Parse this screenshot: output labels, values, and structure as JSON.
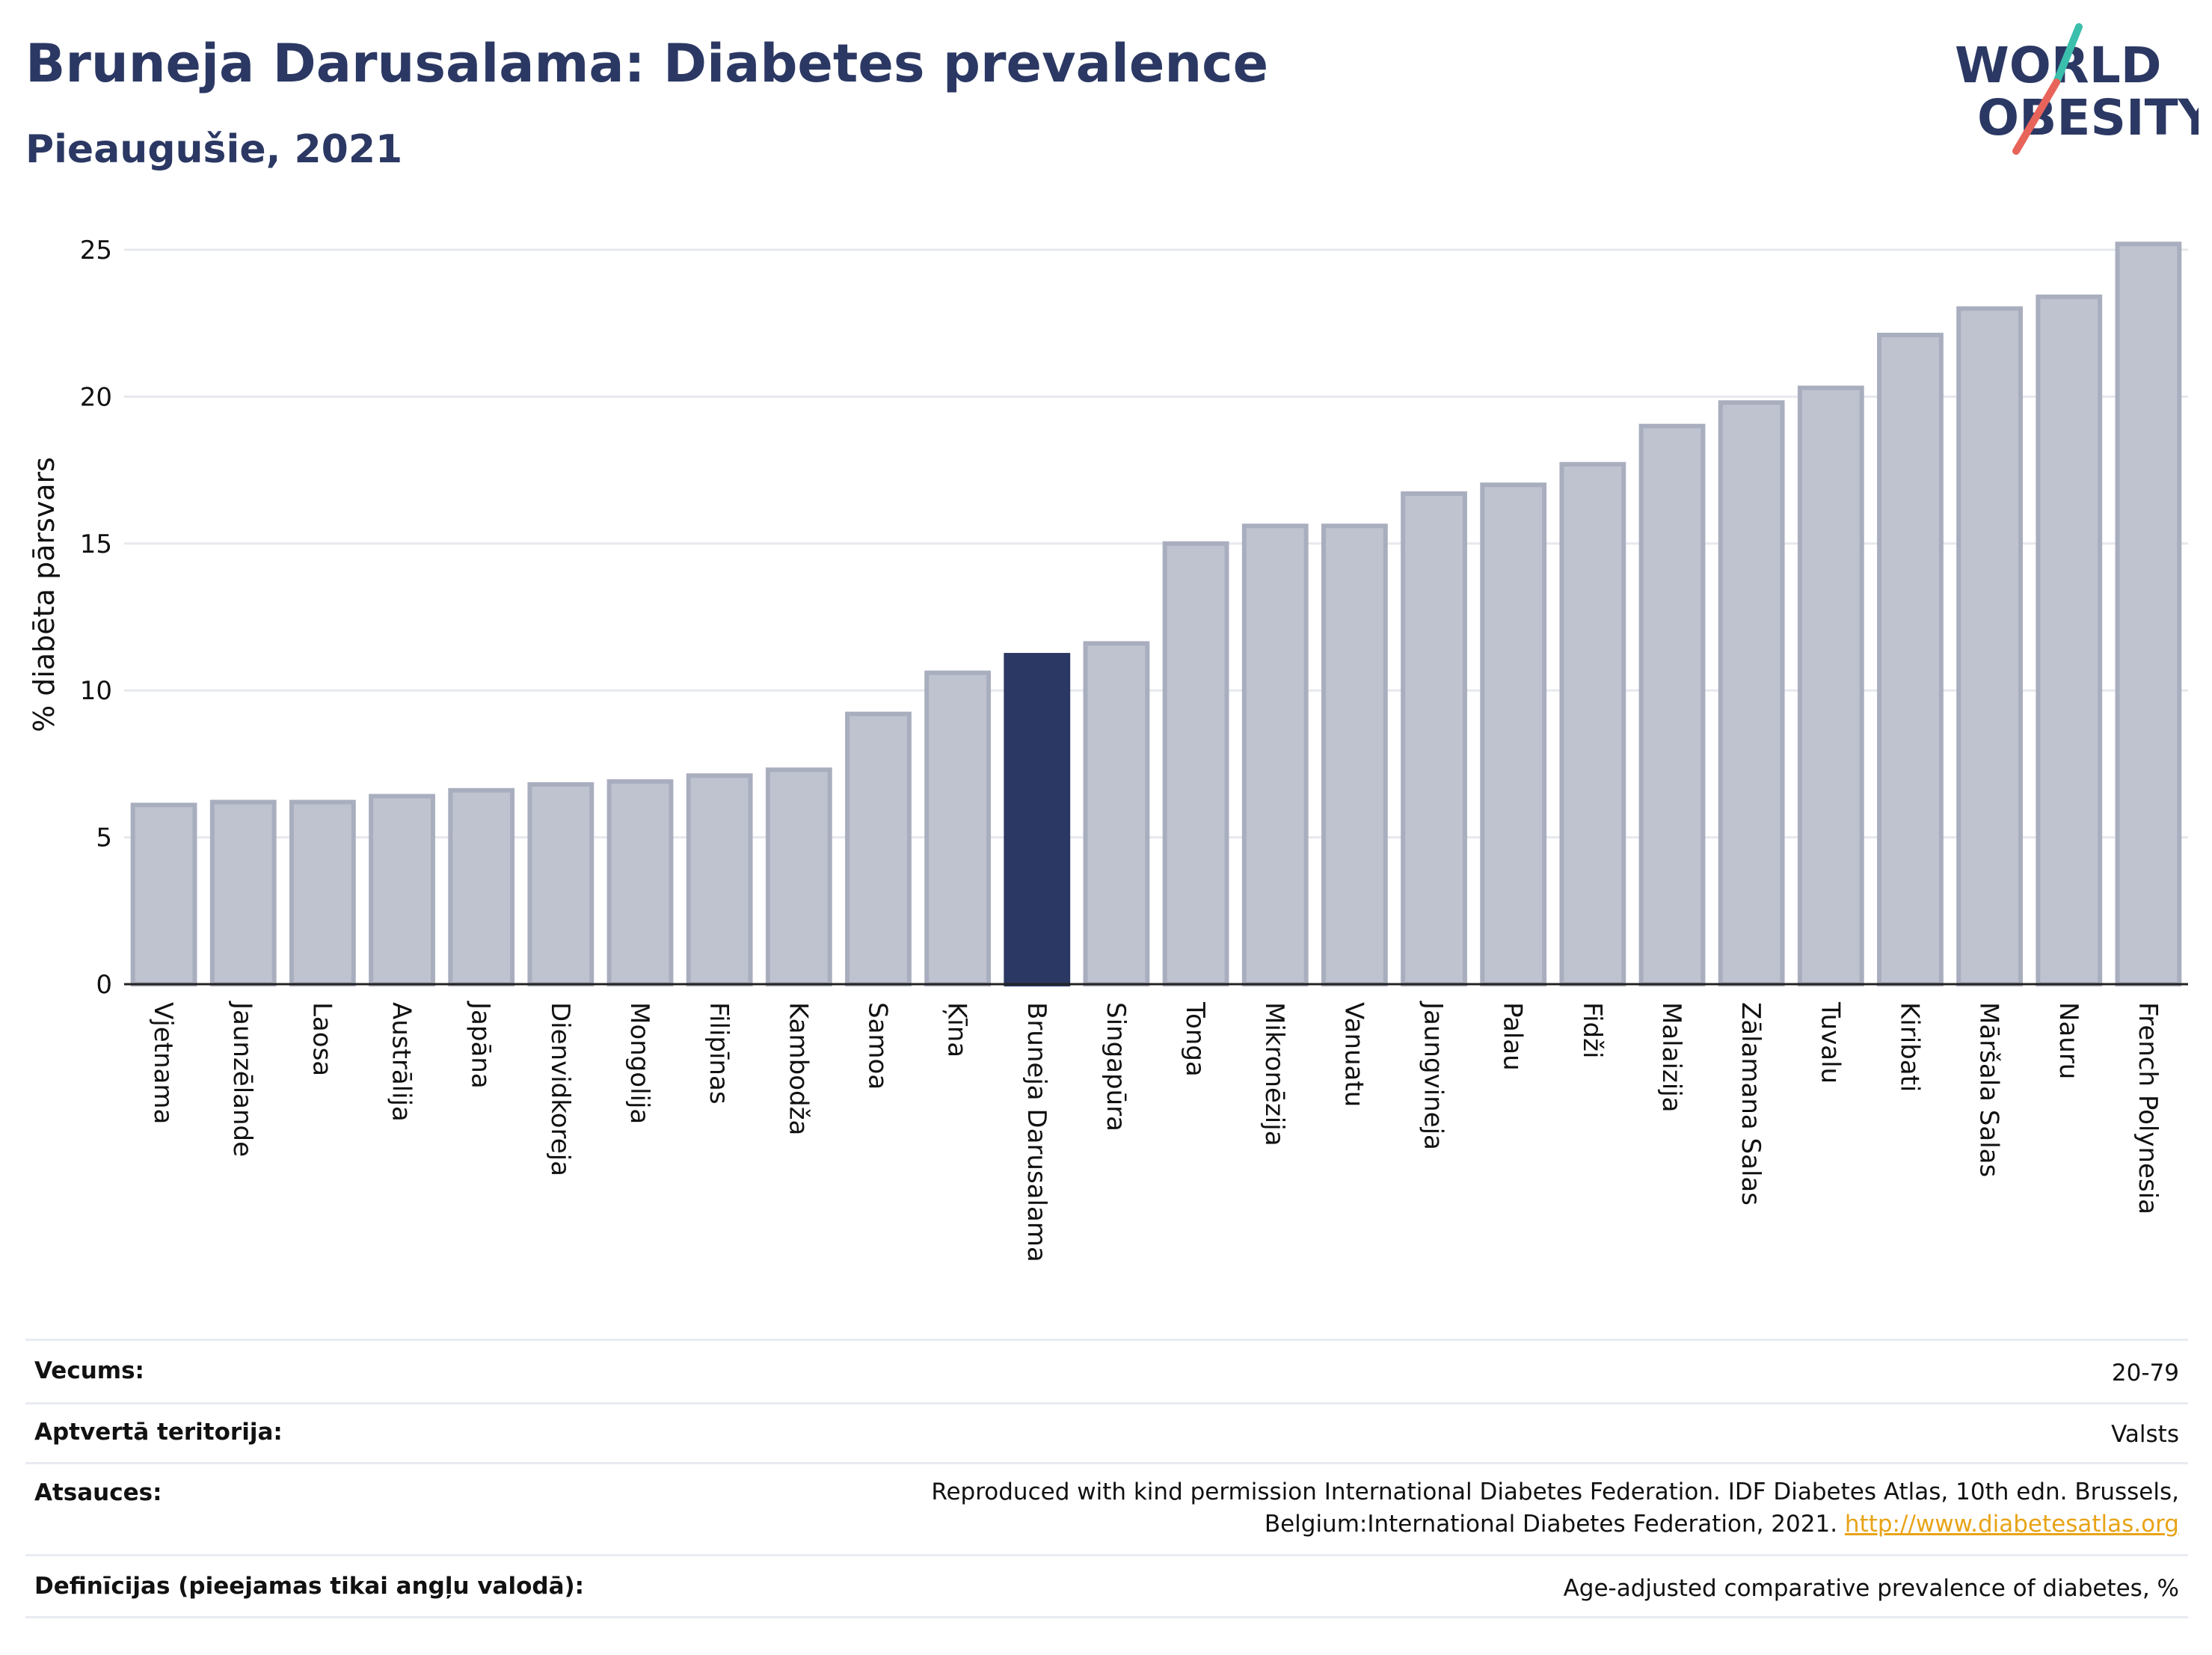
{
  "header": {
    "title": "Bruneja Darusalama: Diabetes prevalence",
    "subtitle": "Pieaugušie, 2021"
  },
  "logo": {
    "line1": "WORLD",
    "line2": "OBESITY",
    "accent_teal": "#3bbfad",
    "accent_red": "#e8645a",
    "text_color": "#2b3863"
  },
  "colors": {
    "bar": "#bfc3d0",
    "bar_edge": "#a9aebf",
    "highlight": "#2b3863",
    "grid": "#e6e8ee",
    "axis": "#222222"
  },
  "chart_data": {
    "type": "bar",
    "title": "Bruneja Darusalama: Diabetes prevalence",
    "subtitle": "Pieaugušie, 2021",
    "ylabel": "% diabēta pārsvars",
    "xlabel": "",
    "ylim": [
      0,
      26
    ],
    "yticks": [
      0,
      5,
      10,
      15,
      20,
      25
    ],
    "grid": true,
    "highlight": "Bruneja Darusalama",
    "categories": [
      "Vjetnama",
      "Jaunzēlande",
      "Laosa",
      "Austrālija",
      "Japāna",
      "Dienvidkoreja",
      "Mongolija",
      "Filipīnas",
      "Kambodža",
      "Samoa",
      "Ķīna",
      "Bruneja Darusalama",
      "Singapūra",
      "Tonga",
      "Mikronēzija",
      "Vanuatu",
      "Jaungvineja",
      "Palau",
      "Fidži",
      "Malaizija",
      "Zālamana Salas",
      "Tuvalu",
      "Kiribati",
      "Māršala Salas",
      "Nauru",
      "French Polynesia"
    ],
    "values": [
      6.1,
      6.2,
      6.2,
      6.4,
      6.6,
      6.8,
      6.9,
      7.1,
      7.3,
      9.2,
      10.6,
      11.2,
      11.6,
      15.0,
      15.6,
      15.6,
      16.7,
      17.0,
      17.7,
      19.0,
      19.8,
      20.3,
      22.1,
      23.0,
      23.4,
      25.2
    ]
  },
  "meta": [
    {
      "key": "Vecums:",
      "value": "20-79"
    },
    {
      "key": "Aptvertā teritorija:",
      "value": "Valsts"
    },
    {
      "key": "Atsauces:",
      "value": "Reproduced with kind permission International Diabetes Federation.  IDF Diabetes Atlas, 10th edn. Brussels, Belgium:International Diabetes Federation, 2021.",
      "link": "http://www.diabetesatlas.org"
    },
    {
      "key": "Definīcijas (pieejamas tikai angļu valodā):",
      "value": "Age-adjusted comparative prevalence of diabetes, %"
    }
  ]
}
